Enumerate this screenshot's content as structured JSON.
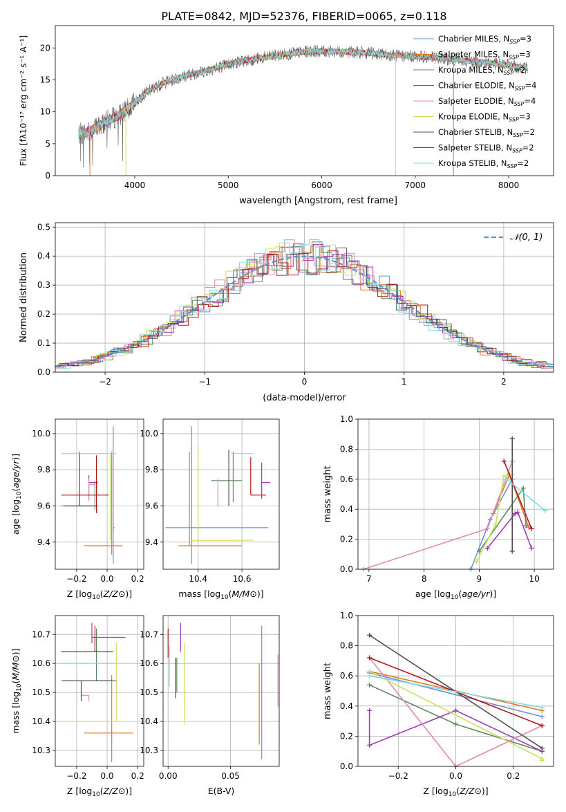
{
  "figure": {
    "title": "PLATE=0842, MJD=52376, FIBERID=0065, z=0.118"
  },
  "styles": {
    "colors": [
      "#6f8fd8",
      "#e07a2a",
      "#5f8a5f",
      "#9d3bb5",
      "#e088b8",
      "#c8e060",
      "#505050",
      "#b01818",
      "#80dde0"
    ]
  },
  "chart_data": [
    {
      "id": "spectrum",
      "type": "line",
      "xlabel": "wavelength [Angstrom, rest frame]",
      "ylabel": "Flux [fλ10⁻¹⁷ erg cm⁻² s⁻¹ A⁻¹]",
      "xlim": [
        3150,
        8480
      ],
      "ylim": [
        0,
        23.5
      ],
      "xticks": [
        4000,
        5000,
        6000,
        7000,
        8000
      ],
      "yticks": [
        0,
        5,
        10,
        15,
        20
      ],
      "legend_position": "top-right",
      "legend": [
        "Chabrier MILES, N_SSP=3",
        "Salpeter MILES, N_SSP=3",
        "Kroupa MILES, N_SSP=2",
        "Chabrier ELODIE, N_SSP=4",
        "Salpeter ELODIE, N_SSP=4",
        "Kroupa ELODIE, N_SSP=3",
        "Chabrier STELIB, N_SSP=2",
        "Salpeter STELIB, N_SSP=2",
        "Kroupa STELIB, N_SSP=2"
      ],
      "legend_main": [
        "Chabrier MILES, N",
        "Salpeter MILES, N",
        "Kroupa MILES, N",
        "Chabrier ELODIE, N",
        "Salpeter ELODIE, N",
        "Kroupa ELODIE, N",
        "Chabrier STELIB, N",
        "Salpeter STELIB, N",
        "Kroupa STELIB, N"
      ],
      "legend_sub": "SSP",
      "legend_val": [
        "=3",
        "=3",
        "=2",
        "=4",
        "=4",
        "=3",
        "=2",
        "=2",
        "=2"
      ],
      "x_range": [
        3400,
        8200
      ],
      "continuum": {
        "x": [
          3400,
          3500,
          3700,
          3900,
          4000,
          4100,
          4300,
          4500,
          4700,
          4900,
          5100,
          5300,
          5600,
          5900,
          6200,
          6500,
          6800,
          7100,
          7400,
          7700,
          8000,
          8200
        ],
        "y": [
          6.5,
          6.8,
          8.5,
          10.0,
          11.5,
          12.8,
          14.5,
          15.5,
          16.2,
          17.0,
          17.8,
          18.3,
          19.0,
          19.5,
          19.4,
          19.2,
          18.8,
          18.6,
          18.2,
          17.8,
          17.3,
          16.8
        ]
      },
      "vertical_drops": [
        3520,
        3905,
        6790,
        7410
      ]
    },
    {
      "id": "residuals",
      "type": "step",
      "xlabel": "(data-model)/error",
      "ylabel": "Normed distribution",
      "xlim": [
        -2.5,
        2.5
      ],
      "ylim": [
        0,
        0.515
      ],
      "xticks": [
        -2,
        -1,
        0,
        1,
        2
      ],
      "yticks": [
        0.0,
        0.1,
        0.2,
        0.3,
        0.4,
        0.5
      ],
      "legend": "𝒩(0, 1)",
      "legend_position": "top-right",
      "bin_width": 0.1,
      "grid": true
    },
    {
      "id": "age-vs-z",
      "type": "errorbar",
      "xlabel": "Z [log10(Z/Z⊙)]",
      "ylabel": "age  [log10(age/yr)]",
      "xlim": [
        -0.34,
        0.24
      ],
      "ylim": [
        9.25,
        10.08
      ],
      "xticks": [
        -0.2,
        0.0,
        0.2
      ],
      "yticks": [
        9.4,
        9.6,
        9.8,
        10.0
      ],
      "points": [
        {
          "x": 0.04,
          "xerr": [
            0.0,
            0.01
          ],
          "y": 9.48,
          "yerr": [
            0.2,
            0.56
          ]
        },
        {
          "x": 0.03,
          "xerr": [
            0.18,
            0.07
          ],
          "y": 9.38,
          "yerr": [
            0.05,
            0.52
          ]
        },
        {
          "x": -0.08,
          "xerr": [
            0.22,
            0.0
          ],
          "y": 9.6,
          "yerr": [
            0.02,
            0.14
          ]
        },
        {
          "x": -0.12,
          "xerr": [
            0.0,
            0.06
          ],
          "y": 9.73,
          "yerr": [
            0.1,
            0.04
          ]
        },
        {
          "x": -0.12,
          "xerr": [
            0.0,
            0.04
          ],
          "y": 9.72,
          "yerr": [
            0.09,
            0.03
          ]
        },
        {
          "x": 0.02,
          "xerr": [
            0.0,
            0.02
          ],
          "y": 9.41,
          "yerr": [
            0.0,
            0.48
          ]
        },
        {
          "x": -0.18,
          "xerr": [
            0.1,
            0.12
          ],
          "y": 9.6,
          "yerr": [
            0.0,
            0.3
          ]
        },
        {
          "x": -0.07,
          "xerr": [
            0.23,
            0.08
          ],
          "y": 9.66,
          "yerr": [
            0.1,
            0.22
          ]
        },
        {
          "x": -0.14,
          "xerr": [
            0.16,
            0.2
          ],
          "y": 9.89,
          "yerr": [
            0.0,
            0.0
          ]
        }
      ]
    },
    {
      "id": "age-vs-mass",
      "type": "errorbar",
      "xlabel": "mass [log10(M/M⊙)]",
      "ylabel": "",
      "xlim": [
        10.24,
        10.77
      ],
      "ylim": [
        9.25,
        10.08
      ],
      "xticks": [
        10.4,
        10.6
      ],
      "yticks": [
        9.4,
        9.6,
        9.8,
        10.0
      ],
      "points": [
        {
          "x": 10.37,
          "xerr": [
            0.12,
            0.35
          ],
          "y": 9.48,
          "yerr": [
            0.2,
            0.56
          ]
        },
        {
          "x": 10.36,
          "xerr": [
            0.05,
            0.24
          ],
          "y": 9.38,
          "yerr": [
            0.0,
            0.52
          ]
        },
        {
          "x": 10.56,
          "xerr": [
            0.1,
            0.04
          ],
          "y": 9.74,
          "yerr": [
            0.12,
            0.16
          ]
        },
        {
          "x": 10.69,
          "xerr": [
            0.0,
            0.04
          ],
          "y": 9.73,
          "yerr": [
            0.09,
            0.11
          ]
        },
        {
          "x": 10.49,
          "xerr": [
            0.0,
            0.0
          ],
          "y": 9.6,
          "yerr": [
            0.0,
            0.15
          ]
        },
        {
          "x": 10.4,
          "xerr": [
            0.03,
            0.25
          ],
          "y": 9.41,
          "yerr": [
            0.0,
            0.52
          ]
        },
        {
          "x": 10.54,
          "xerr": [
            0.0,
            0.0
          ],
          "y": 9.73,
          "yerr": [
            0.13,
            0.18
          ]
        },
        {
          "x": 10.64,
          "xerr": [
            0.0,
            0.07
          ],
          "y": 9.66,
          "yerr": [
            0.0,
            0.21
          ]
        },
        {
          "x": 10.6,
          "xerr": [
            0.05,
            0.05
          ],
          "y": 9.89,
          "yerr": [
            0.0,
            0.0
          ]
        }
      ]
    },
    {
      "id": "mass-weight-vs-age",
      "type": "line",
      "xlabel": "age  [log10(age/yr)]",
      "ylabel": "mass weight",
      "xlim": [
        6.8,
        10.35
      ],
      "ylim": [
        0.0,
        1.0
      ],
      "xticks": [
        7,
        8,
        9,
        10
      ],
      "yticks": [
        0.0,
        0.2,
        0.4,
        0.6,
        0.8,
        1.0
      ],
      "series": [
        {
          "x": [
            8.85,
            9.2,
            9.6
          ],
          "y": [
            0.0,
            0.33,
            0.6
          ]
        },
        {
          "x": [
            9.25,
            9.55,
            9.9
          ],
          "y": [
            0.37,
            0.63,
            0.28
          ]
        },
        {
          "x": [
            9.0,
            9.8,
            9.85
          ],
          "y": [
            0.12,
            0.54,
            0.29
          ]
        },
        {
          "x": [
            9.15,
            9.65,
            9.7,
            9.95
          ],
          "y": [
            0.14,
            0.37,
            0.38,
            0.14
          ]
        },
        {
          "x": [
            6.9,
            9.15,
            9.6
          ],
          "y": [
            0.0,
            0.27,
            0.72
          ]
        },
        {
          "x": [
            8.95,
            9.3,
            9.45,
            9.6
          ],
          "y": [
            0.05,
            0.3,
            0.62,
            0.63
          ]
        },
        {
          "x": [
            9.6,
            9.6
          ],
          "y": [
            0.12,
            0.87
          ]
        },
        {
          "x": [
            9.45,
            9.95
          ],
          "y": [
            0.72,
            0.27
          ]
        },
        {
          "x": [
            9.5,
            10.2
          ],
          "y": [
            0.6,
            0.39
          ]
        }
      ]
    },
    {
      "id": "mass-vs-z",
      "type": "errorbar",
      "xlabel": "Z [log10(Z/Z⊙)]",
      "ylabel": "mass [log10(M/M⊙)]",
      "xlim": [
        -0.34,
        0.24
      ],
      "ylim": [
        10.245,
        10.765
      ],
      "xticks": [
        -0.2,
        0.0,
        0.2
      ],
      "yticks": [
        10.3,
        10.4,
        10.5,
        10.6,
        10.7
      ],
      "points": [
        {
          "x": 0.03,
          "xerr": [
            0.0,
            0.0
          ],
          "y": 10.37,
          "yerr": [
            0.11,
            0.0
          ]
        },
        {
          "x": 0.03,
          "xerr": [
            0.18,
            0.14
          ],
          "y": 10.36,
          "yerr": [
            0.0,
            0.2
          ]
        },
        {
          "x": -0.07,
          "xerr": [
            0.22,
            0.1
          ],
          "y": 10.54,
          "yerr": [
            0.0,
            0.18
          ]
        },
        {
          "x": -0.1,
          "xerr": [
            0.0,
            0.22
          ],
          "y": 10.69,
          "yerr": [
            0.02,
            0.05
          ]
        },
        {
          "x": -0.12,
          "xerr": [
            0.05,
            0.0
          ],
          "y": 10.49,
          "yerr": [
            0.02,
            0.0
          ]
        },
        {
          "x": 0.06,
          "xerr": [
            0.32,
            0.02
          ],
          "y": 10.4,
          "yerr": [
            0.0,
            0.27
          ]
        },
        {
          "x": -0.17,
          "xerr": [
            0.13,
            0.23
          ],
          "y": 10.54,
          "yerr": [
            0.07,
            0.0
          ]
        },
        {
          "x": -0.08,
          "xerr": [
            0.22,
            0.12
          ],
          "y": 10.64,
          "yerr": [
            0.0,
            0.09
          ]
        },
        {
          "x": -0.17,
          "xerr": [
            0.13,
            0.22
          ],
          "y": 10.6,
          "yerr": [
            0.0,
            0.0
          ]
        }
      ]
    },
    {
      "id": "mass-vs-ebv",
      "type": "errorbar",
      "xlabel": "E(B-V)",
      "ylabel": "",
      "xlim": [
        -0.004,
        0.089
      ],
      "ylim": [
        10.245,
        10.765
      ],
      "xticks": [
        0.0,
        0.05
      ],
      "yticks": [
        10.3,
        10.4,
        10.5,
        10.6,
        10.7
      ],
      "points": [
        {
          "x": 0.075,
          "xerr": [
            0.0,
            0.0
          ],
          "y": 10.5,
          "yerr": [
            0.23,
            0.23
          ]
        },
        {
          "x": 0.073,
          "xerr": [
            0.0,
            0.0
          ],
          "y": 10.46,
          "yerr": [
            0.14,
            0.14
          ]
        },
        {
          "x": 0.007,
          "xerr": [
            0.0,
            0.0
          ],
          "y": 10.56,
          "yerr": [
            0.06,
            0.06
          ]
        },
        {
          "x": 0.01,
          "xerr": [
            0.0,
            0.0
          ],
          "y": 10.69,
          "yerr": [
            0.05,
            0.05
          ]
        },
        {
          "x": 0.088,
          "xerr": [
            0.0,
            0.0
          ],
          "y": 10.54,
          "yerr": [
            0.09,
            0.09
          ]
        },
        {
          "x": 0.013,
          "xerr": [
            0.0,
            0.0
          ],
          "y": 10.53,
          "yerr": [
            0.14,
            0.14
          ]
        },
        {
          "x": 0.006,
          "xerr": [
            0.0,
            0.0
          ],
          "y": 10.55,
          "yerr": [
            0.07,
            0.07
          ]
        },
        {
          "x": 0.0,
          "xerr": [
            0.0,
            0.0
          ],
          "y": 10.67,
          "yerr": [
            0.05,
            0.05
          ]
        },
        {
          "x": 0.001,
          "xerr": [
            0.0,
            0.0
          ],
          "y": 10.59,
          "yerr": [
            0.07,
            0.07
          ]
        }
      ]
    },
    {
      "id": "mass-weight-vs-z",
      "type": "line",
      "xlabel": "Z [log10(Z/Z⊙)]",
      "ylabel": "mass weight",
      "xlim": [
        -0.34,
        0.34
      ],
      "ylim": [
        0.0,
        1.0
      ],
      "xticks": [
        -0.2,
        0.0,
        0.2
      ],
      "yticks": [
        0.0,
        0.2,
        0.4,
        0.6,
        0.8,
        1.0
      ],
      "series": [
        {
          "x": [
            -0.3,
            0.3
          ],
          "y": [
            0.62,
            0.33
          ]
        },
        {
          "x": [
            -0.3,
            0.3
          ],
          "y": [
            0.63,
            0.37
          ]
        },
        {
          "x": [
            -0.3,
            0.0,
            0.3
          ],
          "y": [
            0.54,
            0.28,
            0.1
          ]
        },
        {
          "x": [
            -0.3,
            -0.3,
            0.0,
            0.3
          ],
          "y": [
            0.37,
            0.14,
            0.37,
            0.1
          ]
        },
        {
          "x": [
            -0.3,
            0.0,
            0.3
          ],
          "y": [
            0.72,
            0.0,
            0.27
          ]
        },
        {
          "x": [
            -0.3,
            0.3,
            0.3
          ],
          "y": [
            0.63,
            0.05,
            0.04
          ]
        },
        {
          "x": [
            -0.3,
            0.3
          ],
          "y": [
            0.87,
            0.12
          ]
        },
        {
          "x": [
            -0.3,
            0.3
          ],
          "y": [
            0.72,
            0.27
          ]
        },
        {
          "x": [
            -0.3,
            0.3
          ],
          "y": [
            0.6,
            0.39
          ]
        }
      ]
    }
  ]
}
